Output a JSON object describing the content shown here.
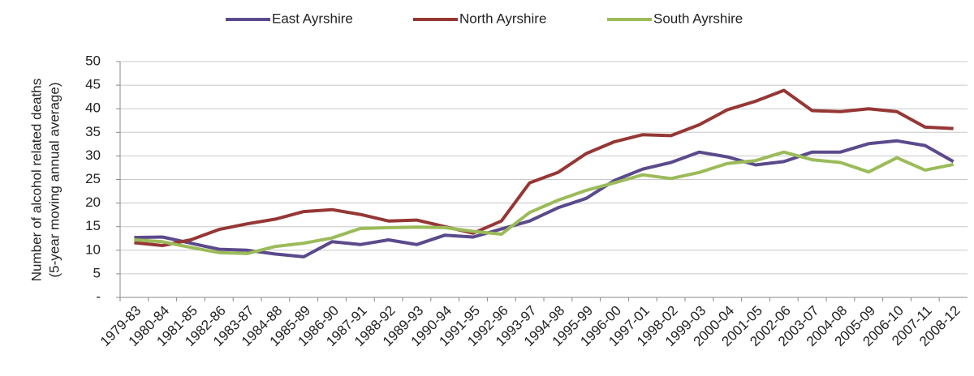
{
  "chart_data": {
    "type": "line",
    "y_label": [
      "Number of alcohol related deaths",
      "(5-year moving annual average)"
    ],
    "categories": [
      "1979-83",
      "1980-84",
      "1981-85",
      "1982-86",
      "1983-87",
      "1984-88",
      "1985-89",
      "1986-90",
      "1987-91",
      "1988-92",
      "1989-93",
      "1990-94",
      "1991-95",
      "1992-96",
      "1993-97",
      "1994-98",
      "1995-99",
      "1996-00",
      "1997-01",
      "1998-02",
      "1999-03",
      "2000-04",
      "2001-05",
      "2002-06",
      "2003-07",
      "2004-08",
      "2005-09",
      "2006-10",
      "2007-11",
      "2008-12"
    ],
    "series": [
      {
        "name": "East Ayrshire",
        "color": "#5b4a8b",
        "values": [
          12.7,
          12.8,
          11.5,
          10.2,
          10.0,
          9.2,
          8.6,
          11.8,
          11.2,
          12.2,
          11.2,
          13.2,
          12.8,
          14.5,
          16.2,
          19.0,
          21.0,
          24.8,
          27.2,
          28.6,
          30.8,
          29.8,
          28.1,
          28.8,
          30.8,
          30.8,
          32.6,
          33.2,
          32.2,
          28.8
        ]
      },
      {
        "name": "North Ayrshire",
        "color": "#953735",
        "values": [
          11.6,
          11.0,
          12.2,
          14.4,
          15.6,
          16.6,
          18.2,
          18.6,
          17.6,
          16.2,
          16.4,
          15.0,
          13.6,
          16.2,
          24.3,
          26.5,
          30.5,
          33.0,
          34.5,
          34.3,
          36.6,
          39.8,
          41.6,
          43.9,
          39.6,
          39.4,
          40.0,
          39.4,
          36.1,
          35.8
        ]
      },
      {
        "name": "South Ayrshire",
        "color": "#9bbb59",
        "values": [
          12.2,
          11.8,
          10.6,
          9.5,
          9.3,
          10.8,
          11.5,
          12.6,
          14.6,
          14.8,
          14.9,
          14.8,
          14.0,
          13.4,
          18.0,
          20.6,
          22.7,
          24.3,
          26.0,
          25.2,
          26.5,
          28.4,
          29.0,
          30.8,
          29.2,
          28.6,
          26.6,
          29.6,
          27.0,
          28.2
        ]
      }
    ],
    "ylim": [
      0,
      50
    ],
    "yticks": [
      {
        "value": 0,
        "label": "-"
      },
      5,
      10,
      15,
      20,
      25,
      30,
      35,
      40,
      45,
      50
    ],
    "grid": true,
    "legend": "top"
  }
}
